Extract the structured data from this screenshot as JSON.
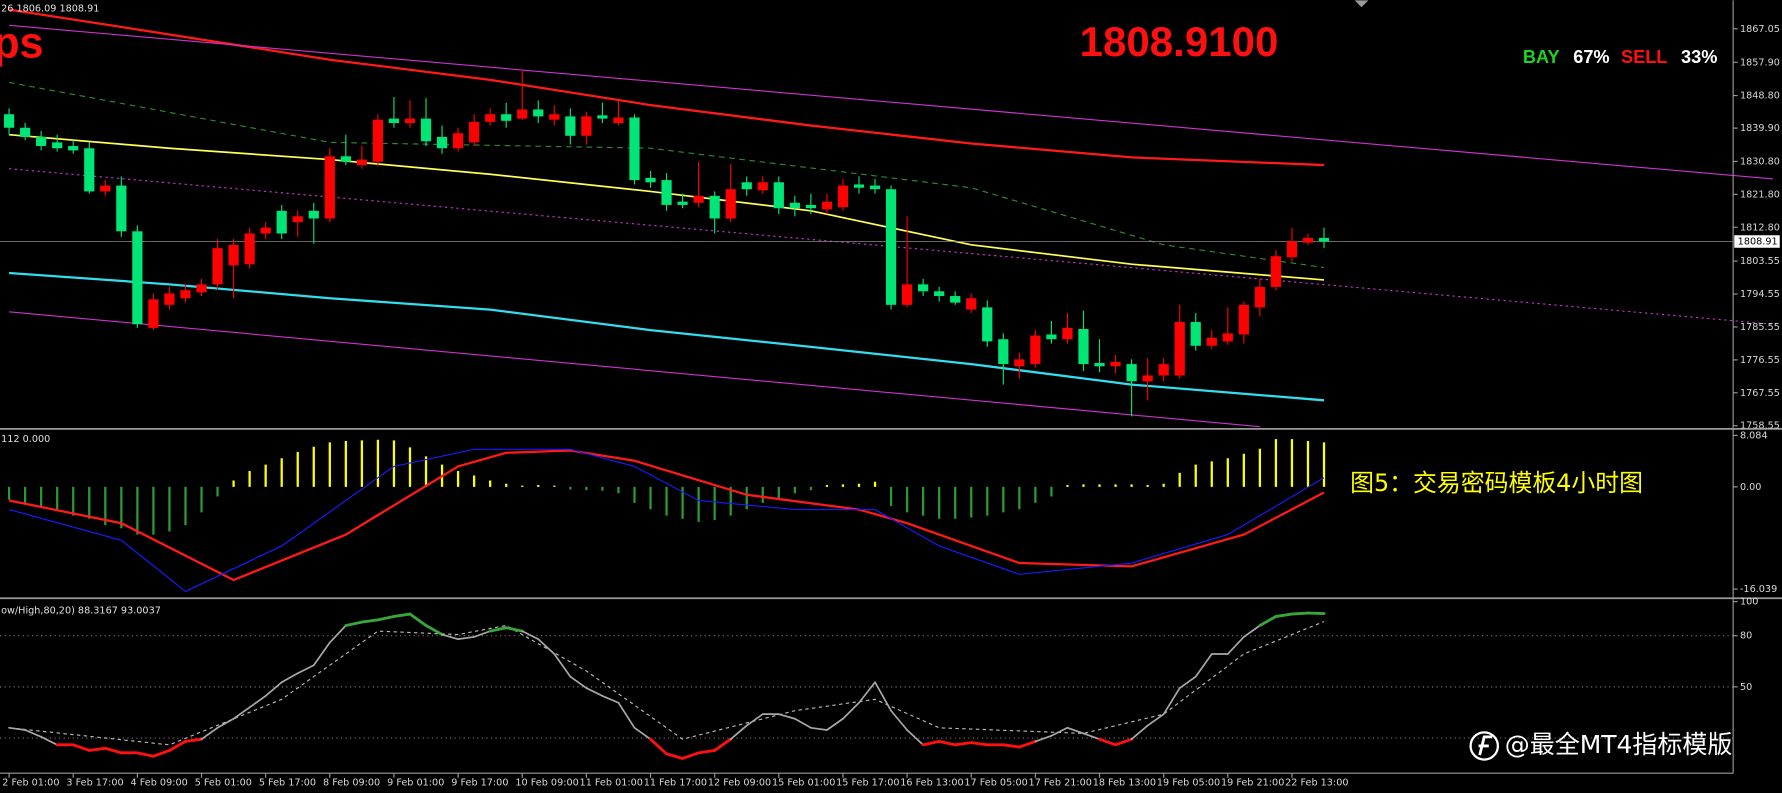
{
  "chart_data": [
    {
      "type": "candlestick",
      "header": "26 1806.09 1808.91",
      "title": "ps",
      "bid_label": "1808.9100",
      "sentiment": [
        {
          "label": "BAY",
          "percent": "67%",
          "color": "#1fd31f"
        },
        {
          "label": "SELL",
          "percent": "33%",
          "color": "#ff1010"
        }
      ],
      "categories": [
        "2 Feb 01:00",
        null,
        null,
        null,
        "3 Feb 17:00",
        null,
        null,
        null,
        "4 Feb 09:00",
        null,
        null,
        null,
        "5 Feb 01:00",
        null,
        null,
        null,
        "5 Feb 17:00",
        null,
        null,
        null,
        "8 Feb 09:00",
        null,
        null,
        null,
        "9 Feb 01:00",
        null,
        null,
        null,
        "9 Feb 17:00",
        null,
        null,
        null,
        "10 Feb 09:00",
        null,
        null,
        null,
        "11 Feb 01:00",
        null,
        null,
        null,
        "11 Feb 17:00",
        null,
        null,
        null,
        "12 Feb 09:00",
        null,
        null,
        null,
        "15 Feb 01:00",
        null,
        null,
        null,
        "15 Feb 17:00",
        null,
        null,
        null,
        "16 Feb 13:00",
        null,
        null,
        null,
        "17 Feb 05:00",
        null,
        null,
        null,
        "17 Feb 21:00",
        null,
        null,
        null,
        "18 Feb 13:00",
        null,
        null,
        null,
        "19 Feb 05:00",
        null,
        null,
        null,
        "19 Feb 21:00",
        null,
        null,
        null,
        "22 Feb 13:00",
        null,
        null
      ],
      "open": [
        1843.7,
        1840.0,
        1837.5,
        1836.0,
        1835.0,
        1834.4,
        1822.6,
        1824.2,
        1811.7,
        1785.3,
        1791.6,
        1793.4,
        1795.0,
        1797.2,
        1802.4,
        1802.7,
        1811.1,
        1817.3,
        1814.2,
        1817.3,
        1815.2,
        1832.2,
        1829.8,
        1830.7,
        1842.5,
        1841.3,
        1842.5,
        1837.5,
        1834.4,
        1836.0,
        1841.6,
        1843.7,
        1842.5,
        1845.0,
        1842.2,
        1843.1,
        1837.8,
        1843.4,
        1841.3,
        1842.8,
        1826.3,
        1825.7,
        1819.8,
        1819.5,
        1821.4,
        1815.2,
        1825.1,
        1822.9,
        1825.1,
        1819.5,
        1818.9,
        1817.7,
        1818.3,
        1824.5,
        1824.2,
        1823.2,
        1791.6,
        1797.2,
        1795.3,
        1794.0,
        1790.3,
        1790.9,
        1782.2,
        1774.8,
        1775.4,
        1783.5,
        1782.2,
        1785.0,
        1775.7,
        1774.8,
        1775.4,
        1770.7,
        1772.3,
        1772.3,
        1786.9,
        1780.4,
        1781.6,
        1783.5,
        1790.9,
        1796.5,
        1804.6,
        1808.6,
        1809.9
      ],
      "high": [
        1845.3,
        1841.3,
        1839.1,
        1838.1,
        1836.6,
        1836.0,
        1825.7,
        1826.7,
        1813.3,
        1794.7,
        1796.5,
        1797.2,
        1798.7,
        1809.6,
        1809.6,
        1812.7,
        1814.2,
        1818.9,
        1817.3,
        1819.5,
        1834.4,
        1838.1,
        1835.0,
        1843.7,
        1848.4,
        1847.5,
        1848.1,
        1840.6,
        1840.0,
        1843.7,
        1845.3,
        1846.8,
        1855.5,
        1847.5,
        1846.2,
        1845.3,
        1844.4,
        1846.8,
        1847.5,
        1843.7,
        1828.2,
        1827.6,
        1822.0,
        1830.7,
        1822.6,
        1830.1,
        1826.7,
        1826.7,
        1826.7,
        1821.4,
        1822.0,
        1822.0,
        1826.0,
        1826.7,
        1826.0,
        1824.2,
        1815.8,
        1798.7,
        1796.5,
        1795.3,
        1794.7,
        1792.8,
        1783.8,
        1778.5,
        1784.7,
        1787.2,
        1789.4,
        1790.0,
        1782.2,
        1777.9,
        1776.7,
        1777.0,
        1777.0,
        1791.6,
        1789.4,
        1784.7,
        1790.9,
        1792.5,
        1798.7,
        1806.5,
        1812.7,
        1811.1,
        1812.7
      ],
      "low": [
        1838.1,
        1836.6,
        1833.8,
        1833.5,
        1832.9,
        1822.0,
        1821.4,
        1810.2,
        1785.3,
        1784.7,
        1790.3,
        1792.2,
        1794.0,
        1795.6,
        1793.4,
        1801.5,
        1809.6,
        1809.6,
        1810.2,
        1808.3,
        1814.2,
        1829.8,
        1828.8,
        1829.5,
        1840.0,
        1840.0,
        1835.0,
        1832.9,
        1833.5,
        1835.0,
        1840.6,
        1840.0,
        1842.2,
        1841.3,
        1840.6,
        1835.4,
        1835.4,
        1841.3,
        1840.6,
        1824.5,
        1823.6,
        1817.3,
        1818.0,
        1818.3,
        1811.1,
        1814.2,
        1821.4,
        1822.0,
        1816.4,
        1815.8,
        1816.4,
        1816.4,
        1817.3,
        1822.0,
        1822.0,
        1790.3,
        1790.9,
        1794.0,
        1792.5,
        1791.6,
        1789.4,
        1780.1,
        1769.8,
        1771.4,
        1774.5,
        1781.0,
        1781.0,
        1773.5,
        1773.2,
        1772.9,
        1761.1,
        1765.5,
        1770.7,
        1771.4,
        1779.1,
        1779.5,
        1780.7,
        1781.0,
        1788.5,
        1795.6,
        1803.4,
        1808.0,
        1807.1
      ],
      "close": [
        1840.0,
        1837.5,
        1835.0,
        1834.4,
        1833.8,
        1822.6,
        1824.2,
        1811.7,
        1786.3,
        1793.1,
        1794.7,
        1795.6,
        1797.2,
        1807.1,
        1808.0,
        1811.1,
        1812.7,
        1811.1,
        1815.8,
        1815.2,
        1832.2,
        1830.7,
        1831.3,
        1842.2,
        1841.3,
        1842.5,
        1836.3,
        1834.4,
        1838.5,
        1841.6,
        1843.7,
        1841.9,
        1845.0,
        1843.1,
        1843.7,
        1837.8,
        1843.1,
        1842.5,
        1842.8,
        1825.7,
        1825.1,
        1818.9,
        1818.9,
        1821.4,
        1815.2,
        1823.2,
        1823.2,
        1825.1,
        1818.0,
        1818.0,
        1818.0,
        1819.8,
        1824.2,
        1823.6,
        1823.2,
        1791.6,
        1797.2,
        1795.3,
        1794.0,
        1792.2,
        1793.4,
        1781.6,
        1775.4,
        1776.7,
        1783.2,
        1782.2,
        1785.3,
        1775.4,
        1774.8,
        1776.0,
        1770.7,
        1772.3,
        1775.4,
        1786.9,
        1780.4,
        1782.6,
        1783.8,
        1791.6,
        1796.5,
        1804.9,
        1809.0,
        1809.9,
        1808.91
      ],
      "up_color": "#ff0000",
      "down_color": "#00e676",
      "current_price": 1808.91,
      "lines": [
        {
          "color": "#ff1a1a",
          "style": "solid",
          "width": 2,
          "x": [
            0,
            10,
            20,
            30,
            40,
            50,
            60,
            70,
            82
          ],
          "values": [
            1872.3,
            1865.5,
            1858.6,
            1853.1,
            1846.2,
            1840.6,
            1835.7,
            1831.9,
            1829.8
          ]
        },
        {
          "color": "#ffff55",
          "style": "solid",
          "width": 1.5,
          "x": [
            0,
            10,
            20,
            30,
            40,
            50,
            60,
            70,
            82
          ],
          "values": [
            1838.1,
            1834.4,
            1831.3,
            1827.3,
            1822.6,
            1817.3,
            1808.0,
            1802.7,
            1798.4
          ]
        },
        {
          "color": "#33ddee",
          "style": "solid",
          "width": 2,
          "x": [
            0,
            10,
            20,
            30,
            40,
            50,
            60,
            70,
            82
          ],
          "values": [
            1800.3,
            1797.2,
            1793.4,
            1790.3,
            1784.7,
            1780.1,
            1775.4,
            1769.8,
            1765.5
          ]
        },
        {
          "color": "#cc33cc",
          "style": "solid",
          "width": 1,
          "x": [
            0,
            110
          ],
          "values": [
            1868.0,
            1826.0
          ]
        },
        {
          "color": "#cc33cc",
          "style": "dotted",
          "width": 1,
          "x": [
            0,
            110
          ],
          "values": [
            1828.8,
            1786.3
          ]
        },
        {
          "color": "#cc33cc",
          "style": "solid",
          "width": 1,
          "x": [
            0,
            78
          ],
          "values": [
            1789.7,
            1758.3
          ]
        },
        {
          "color": "#2e8b2e",
          "style": "dashed",
          "width": 1,
          "x": [
            0,
            20,
            40,
            60,
            72,
            82
          ],
          "values": [
            1852.4,
            1836.0,
            1834.4,
            1823.6,
            1808.0,
            1801.8
          ]
        }
      ],
      "ylim": [
        1758.0,
        1874.8
      ],
      "yticks": [
        1867.05,
        {
          "value": 1857.9,
          "label": "1857.90"
        },
        {
          "value": 1848.8,
          "label": "1848.80"
        },
        {
          "value": 1839.9,
          "label": "1839.90"
        },
        {
          "value": 1830.8,
          "label": "1830.80"
        },
        {
          "value": 1821.8,
          "label": "1821.80"
        },
        {
          "value": 1812.8,
          "label": "1812.80"
        },
        1803.55,
        1794.55,
        1785.55,
        1776.55,
        1767.55,
        1758.55
      ]
    },
    {
      "type": "macd",
      "header": "112 0.000",
      "annotation": "图5：交易密码模板4小时图",
      "values": [
        -2,
        -2.5,
        -3,
        -3.5,
        -4.5,
        -5,
        -6,
        -6.5,
        -7.5,
        -7.5,
        -7,
        -6,
        -4,
        -1.5,
        1,
        2.5,
        3.5,
        4.5,
        5.5,
        6.3,
        7,
        7.2,
        7.3,
        7.4,
        7.3,
        6.2,
        4.8,
        3.5,
        2.5,
        1.8,
        1,
        0.5,
        0.2,
        0.3,
        0.2,
        -0.4,
        -0.5,
        -0.6,
        -1,
        -2.5,
        -3.5,
        -4.5,
        -5,
        -5.5,
        -5.2,
        -4.5,
        -3.5,
        -2.5,
        -1.8,
        -1,
        -0.5,
        0.3,
        0.4,
        0.5,
        0.8,
        -3,
        -4,
        -4.5,
        -5,
        -5,
        -4.8,
        -4.5,
        -4,
        -3.5,
        -2.5,
        -1.5,
        0.3,
        0.4,
        0.4,
        0.4,
        0.4,
        0.3,
        0.5,
        2.2,
        3.5,
        4,
        4.5,
        5.2,
        6,
        7.5,
        7.5,
        7.2,
        7
      ],
      "pos_color": "#ffff00",
      "neg_color": "#2e9a2e",
      "lines": [
        {
          "color": "#ff1a1a",
          "style": "solid",
          "width": 2,
          "x": [
            0,
            7,
            14,
            21,
            28,
            31,
            35,
            39,
            46,
            53,
            56,
            63,
            70,
            77,
            82
          ],
          "values": [
            -2.13,
            -5.7,
            -14.62,
            -7.49,
            3.22,
            5.36,
            5.72,
            4.11,
            -1.24,
            -3.56,
            -5.7,
            -11.95,
            -12.48,
            -7.49,
            -0.88
          ]
        },
        {
          "color": "#1a1aff",
          "style": "solid",
          "width": 1,
          "x": [
            0,
            7,
            11,
            17,
            24,
            29,
            35,
            39,
            43,
            49,
            54,
            58,
            63,
            70,
            76,
            82
          ],
          "values": [
            -3.56,
            -8.38,
            -16.41,
            -9.27,
            3.22,
            5.9,
            5.9,
            3.22,
            -2.13,
            -3.56,
            -3.56,
            -9.27,
            -13.73,
            -11.95,
            -7.49,
            1.44
          ]
        }
      ],
      "ylim": [
        -17.3,
        8.93
      ],
      "yticks": [
        8.084,
        {
          "value": 0,
          "label": "0.00"
        },
        -16.039
      ]
    },
    {
      "type": "stochastic",
      "header": "ow/High,80,20) 88.3167 93.0037",
      "values": [
        26,
        24.7,
        20.7,
        16,
        16,
        12.7,
        14,
        11.3,
        11.3,
        9.3,
        12.7,
        18,
        19.3,
        26,
        31.3,
        38,
        44.7,
        52.7,
        58,
        62.7,
        76,
        86,
        88,
        89.3,
        91.3,
        92.7,
        86,
        80.7,
        78,
        79.3,
        82.7,
        84.7,
        82.7,
        78,
        69.3,
        56,
        49.3,
        44.7,
        40.7,
        26,
        19.3,
        10.7,
        8,
        11.3,
        12.7,
        19.3,
        27.3,
        34,
        34,
        31.3,
        26,
        24.7,
        31.3,
        40.7,
        52.7,
        36,
        24.7,
        16,
        18,
        16,
        17.3,
        16,
        16,
        14.7,
        18,
        21.3,
        26,
        22.7,
        19.3,
        16,
        19.3,
        27.3,
        34,
        49.3,
        56,
        69.3,
        69.3,
        79.3,
        86,
        91.3,
        92.7,
        93.3,
        93.0037
      ],
      "signal": {
        "color": "#bbbbbb",
        "x": [
          0,
          10,
          17,
          23,
          28,
          31,
          36,
          42,
          49,
          54,
          58,
          67,
          72,
          77,
          82
        ],
        "values": [
          26,
          16,
          42.7,
          82.7,
          80.7,
          86,
          59.3,
          19.3,
          36,
          42.7,
          26,
          22.7,
          34,
          69.3,
          88.3167
        ]
      },
      "colors": {
        "high": "#3aa53a",
        "mid": "#a8a8a8",
        "low": "#ff1010"
      },
      "levels": [
        80,
        50,
        20
      ],
      "ylim": [
        0,
        100
      ],
      "yticks": [
        100,
        80,
        50
      ]
    }
  ],
  "watermark": "@最全MT4指标模版"
}
